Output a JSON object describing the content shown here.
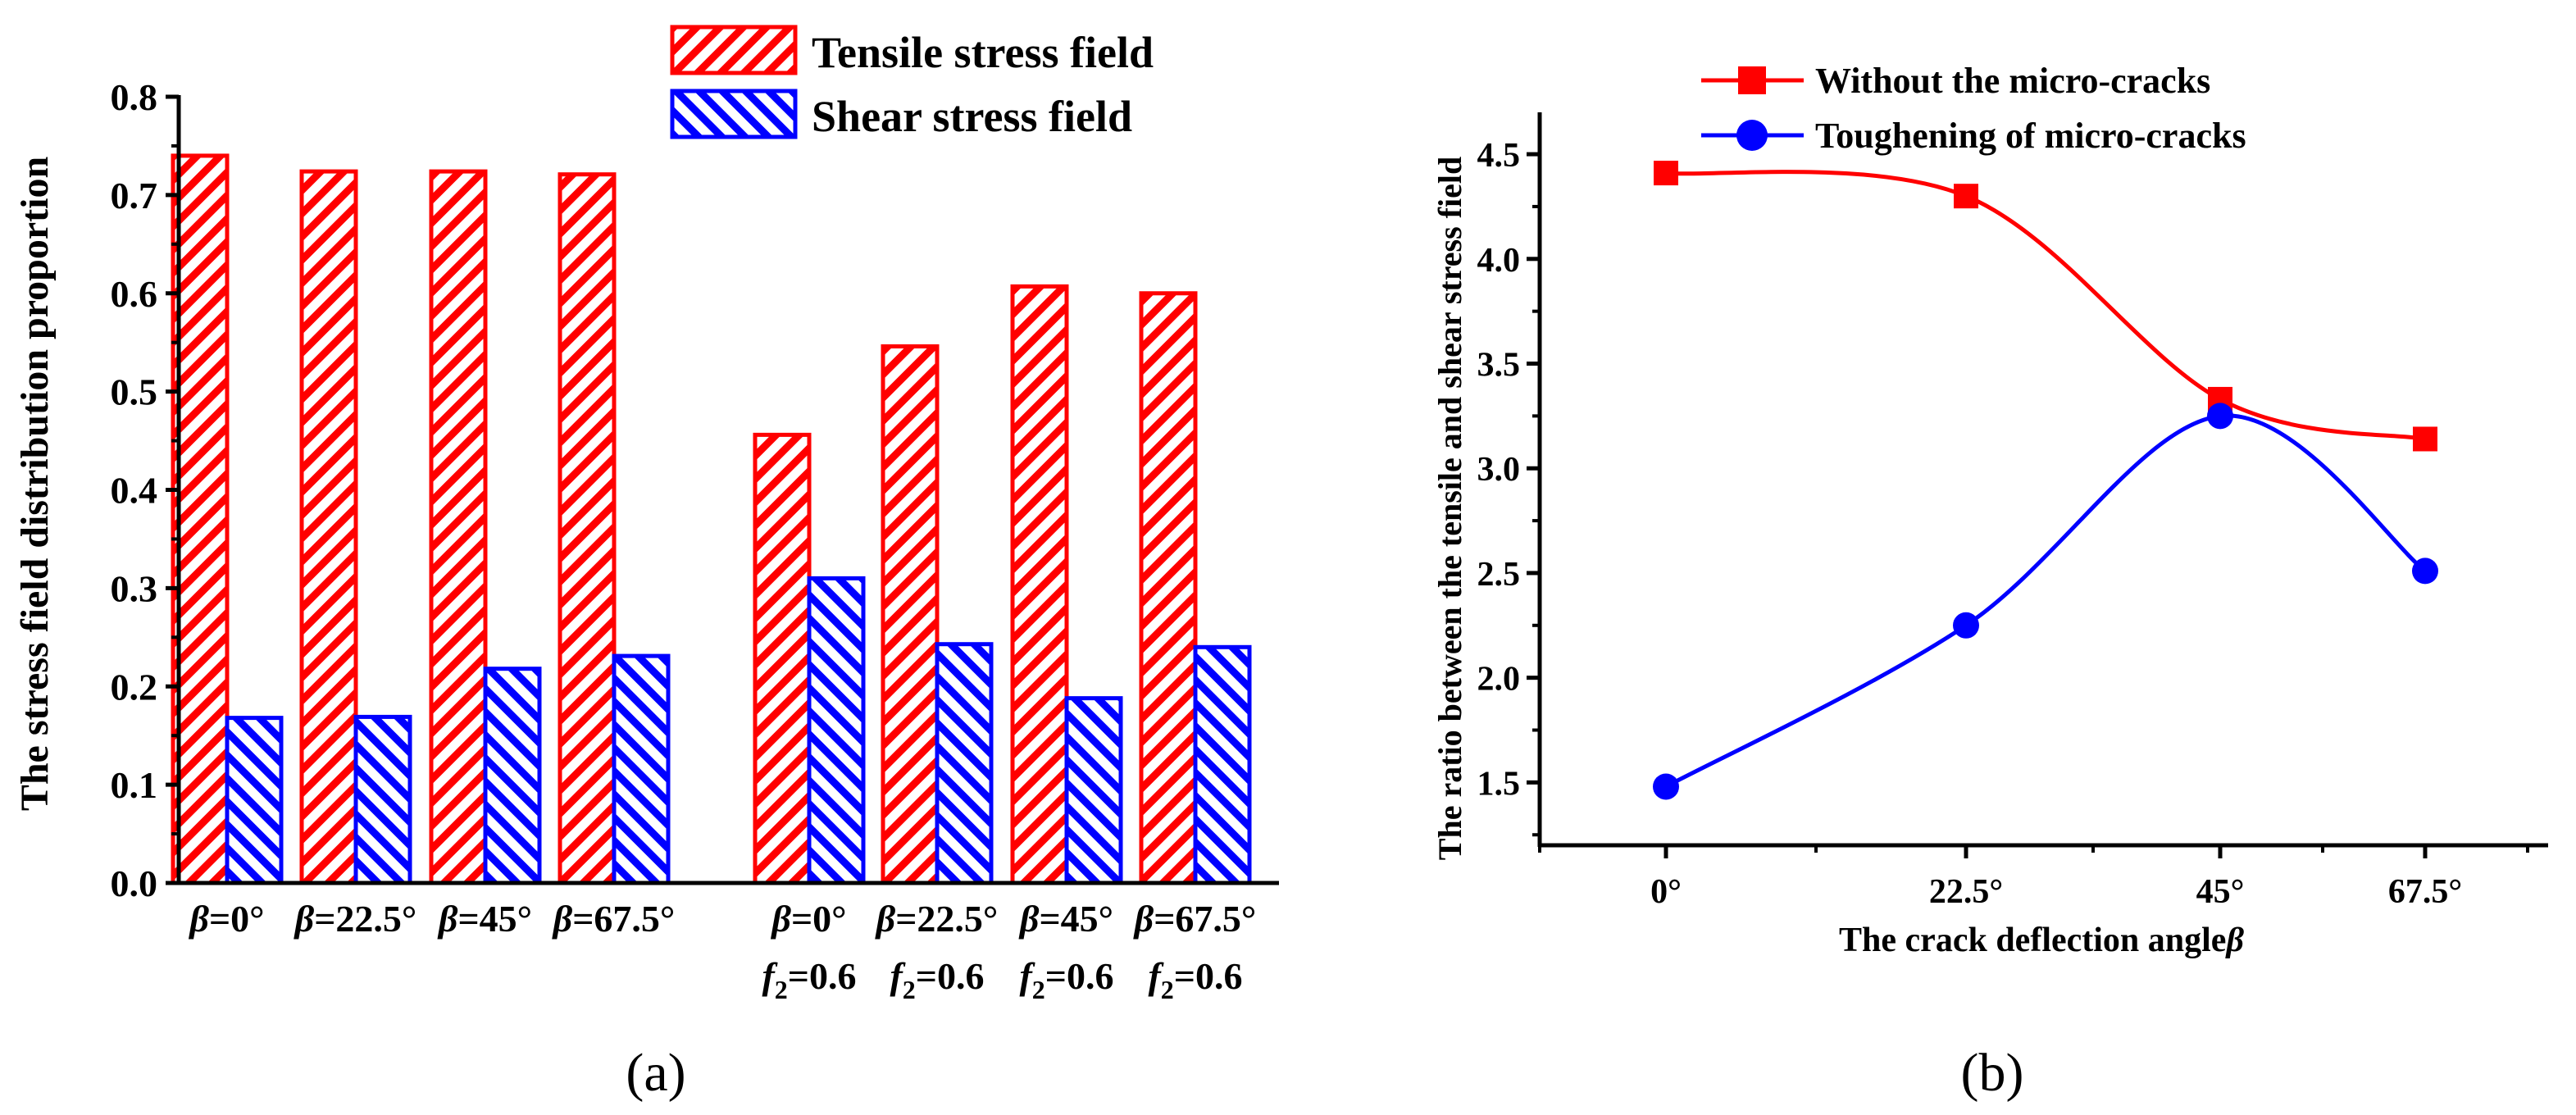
{
  "colors": {
    "tensile": "#ff0000",
    "shear": "#0000ff",
    "line_a": "#ff0000",
    "line_b": "#0000ff",
    "axis": "#000000"
  },
  "chart_data": [
    {
      "type": "bar",
      "panel": "(a)",
      "ylabel": "The stress field distribution proportion",
      "xlabel": "",
      "ylim": [
        0,
        0.8
      ],
      "yticks": [
        "0.0",
        "0.1",
        "0.2",
        "0.3",
        "0.4",
        "0.5",
        "0.6",
        "0.7",
        "0.8"
      ],
      "categories": [
        {
          "beta": "β",
          "eq": "=0°",
          "f": "",
          "fsub": "",
          "feq": ""
        },
        {
          "beta": "β",
          "eq": "=22.5°",
          "f": "",
          "fsub": "",
          "feq": ""
        },
        {
          "beta": "β",
          "eq": "=45°",
          "f": "",
          "fsub": "",
          "feq": ""
        },
        {
          "beta": "β",
          "eq": "=67.5°",
          "f": "",
          "fsub": "",
          "feq": ""
        },
        {
          "beta": "β",
          "eq": "=0°",
          "f": "f",
          "fsub": "2",
          "feq": "=0.6"
        },
        {
          "beta": "β",
          "eq": "=22.5°",
          "f": "f",
          "fsub": "2",
          "feq": "=0.6"
        },
        {
          "beta": "β",
          "eq": "=45°",
          "f": "f",
          "fsub": "2",
          "feq": "=0.6"
        },
        {
          "beta": "β",
          "eq": "=67.5°",
          "f": "f",
          "fsub": "2",
          "feq": "=0.6"
        }
      ],
      "series": [
        {
          "name": "Tensile stress field",
          "values": [
            0.74,
            0.724,
            0.724,
            0.721,
            0.456,
            0.546,
            0.607,
            0.6
          ]
        },
        {
          "name": "Shear stress field",
          "values": [
            0.168,
            0.169,
            0.218,
            0.231,
            0.31,
            0.243,
            0.188,
            0.24
          ]
        }
      ],
      "legend": "top-center"
    },
    {
      "type": "line",
      "panel": "(b)",
      "ylabel": "The ratio between the tensile and shear stress field",
      "xlabel": "The crack deflection angle",
      "xlabel_symbol": "β",
      "x": [
        "0°",
        "22.5°",
        "45°",
        "67.5°"
      ],
      "ylim": [
        1.2,
        4.7
      ],
      "yticks": [
        "1.5",
        "2.0",
        "2.5",
        "3.0",
        "3.5",
        "4.0",
        "4.5"
      ],
      "series": [
        {
          "name": "Without the micro-cracks",
          "marker": "square",
          "values": [
            4.41,
            4.3,
            3.33,
            3.14
          ]
        },
        {
          "name": "Toughening of  micro-cracks",
          "marker": "circle",
          "values": [
            1.48,
            2.25,
            3.25,
            2.51
          ]
        }
      ],
      "legend": "top-center"
    }
  ]
}
